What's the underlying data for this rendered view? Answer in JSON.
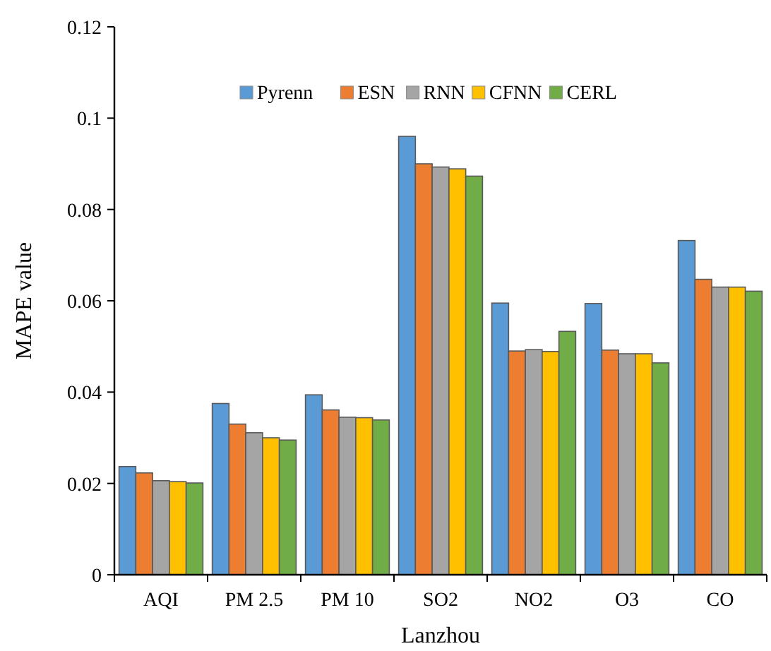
{
  "chart_data": {
    "type": "bar",
    "xlabel": "Lanzhou",
    "ylabel": "MAPE value",
    "categories": [
      "AQI",
      "PM 2.5",
      "PM 10",
      "SO2",
      "NO2",
      "O3",
      "CO"
    ],
    "series": [
      {
        "name": "Pyrenn",
        "color": "#5b9bd5",
        "values": [
          0.0237,
          0.0375,
          0.0394,
          0.096,
          0.0595,
          0.0594,
          0.0732
        ]
      },
      {
        "name": "ESN",
        "color": "#ed7d31",
        "values": [
          0.0223,
          0.033,
          0.0361,
          0.09,
          0.049,
          0.0492,
          0.0647
        ]
      },
      {
        "name": "RNN",
        "color": "#a5a5a5",
        "values": [
          0.0206,
          0.0311,
          0.0345,
          0.0893,
          0.0493,
          0.0484,
          0.063
        ]
      },
      {
        "name": "CFNN",
        "color": "#ffc000",
        "values": [
          0.0204,
          0.03,
          0.0344,
          0.0889,
          0.0489,
          0.0484,
          0.063
        ]
      },
      {
        "name": "CERL",
        "color": "#70ad47",
        "values": [
          0.0201,
          0.0295,
          0.0339,
          0.0873,
          0.0533,
          0.0464,
          0.0621
        ]
      }
    ],
    "ylim": [
      0,
      0.12
    ],
    "yticks": [
      0,
      0.02,
      0.04,
      0.06,
      0.08,
      0.1,
      0.12
    ],
    "legend": "top right"
  }
}
